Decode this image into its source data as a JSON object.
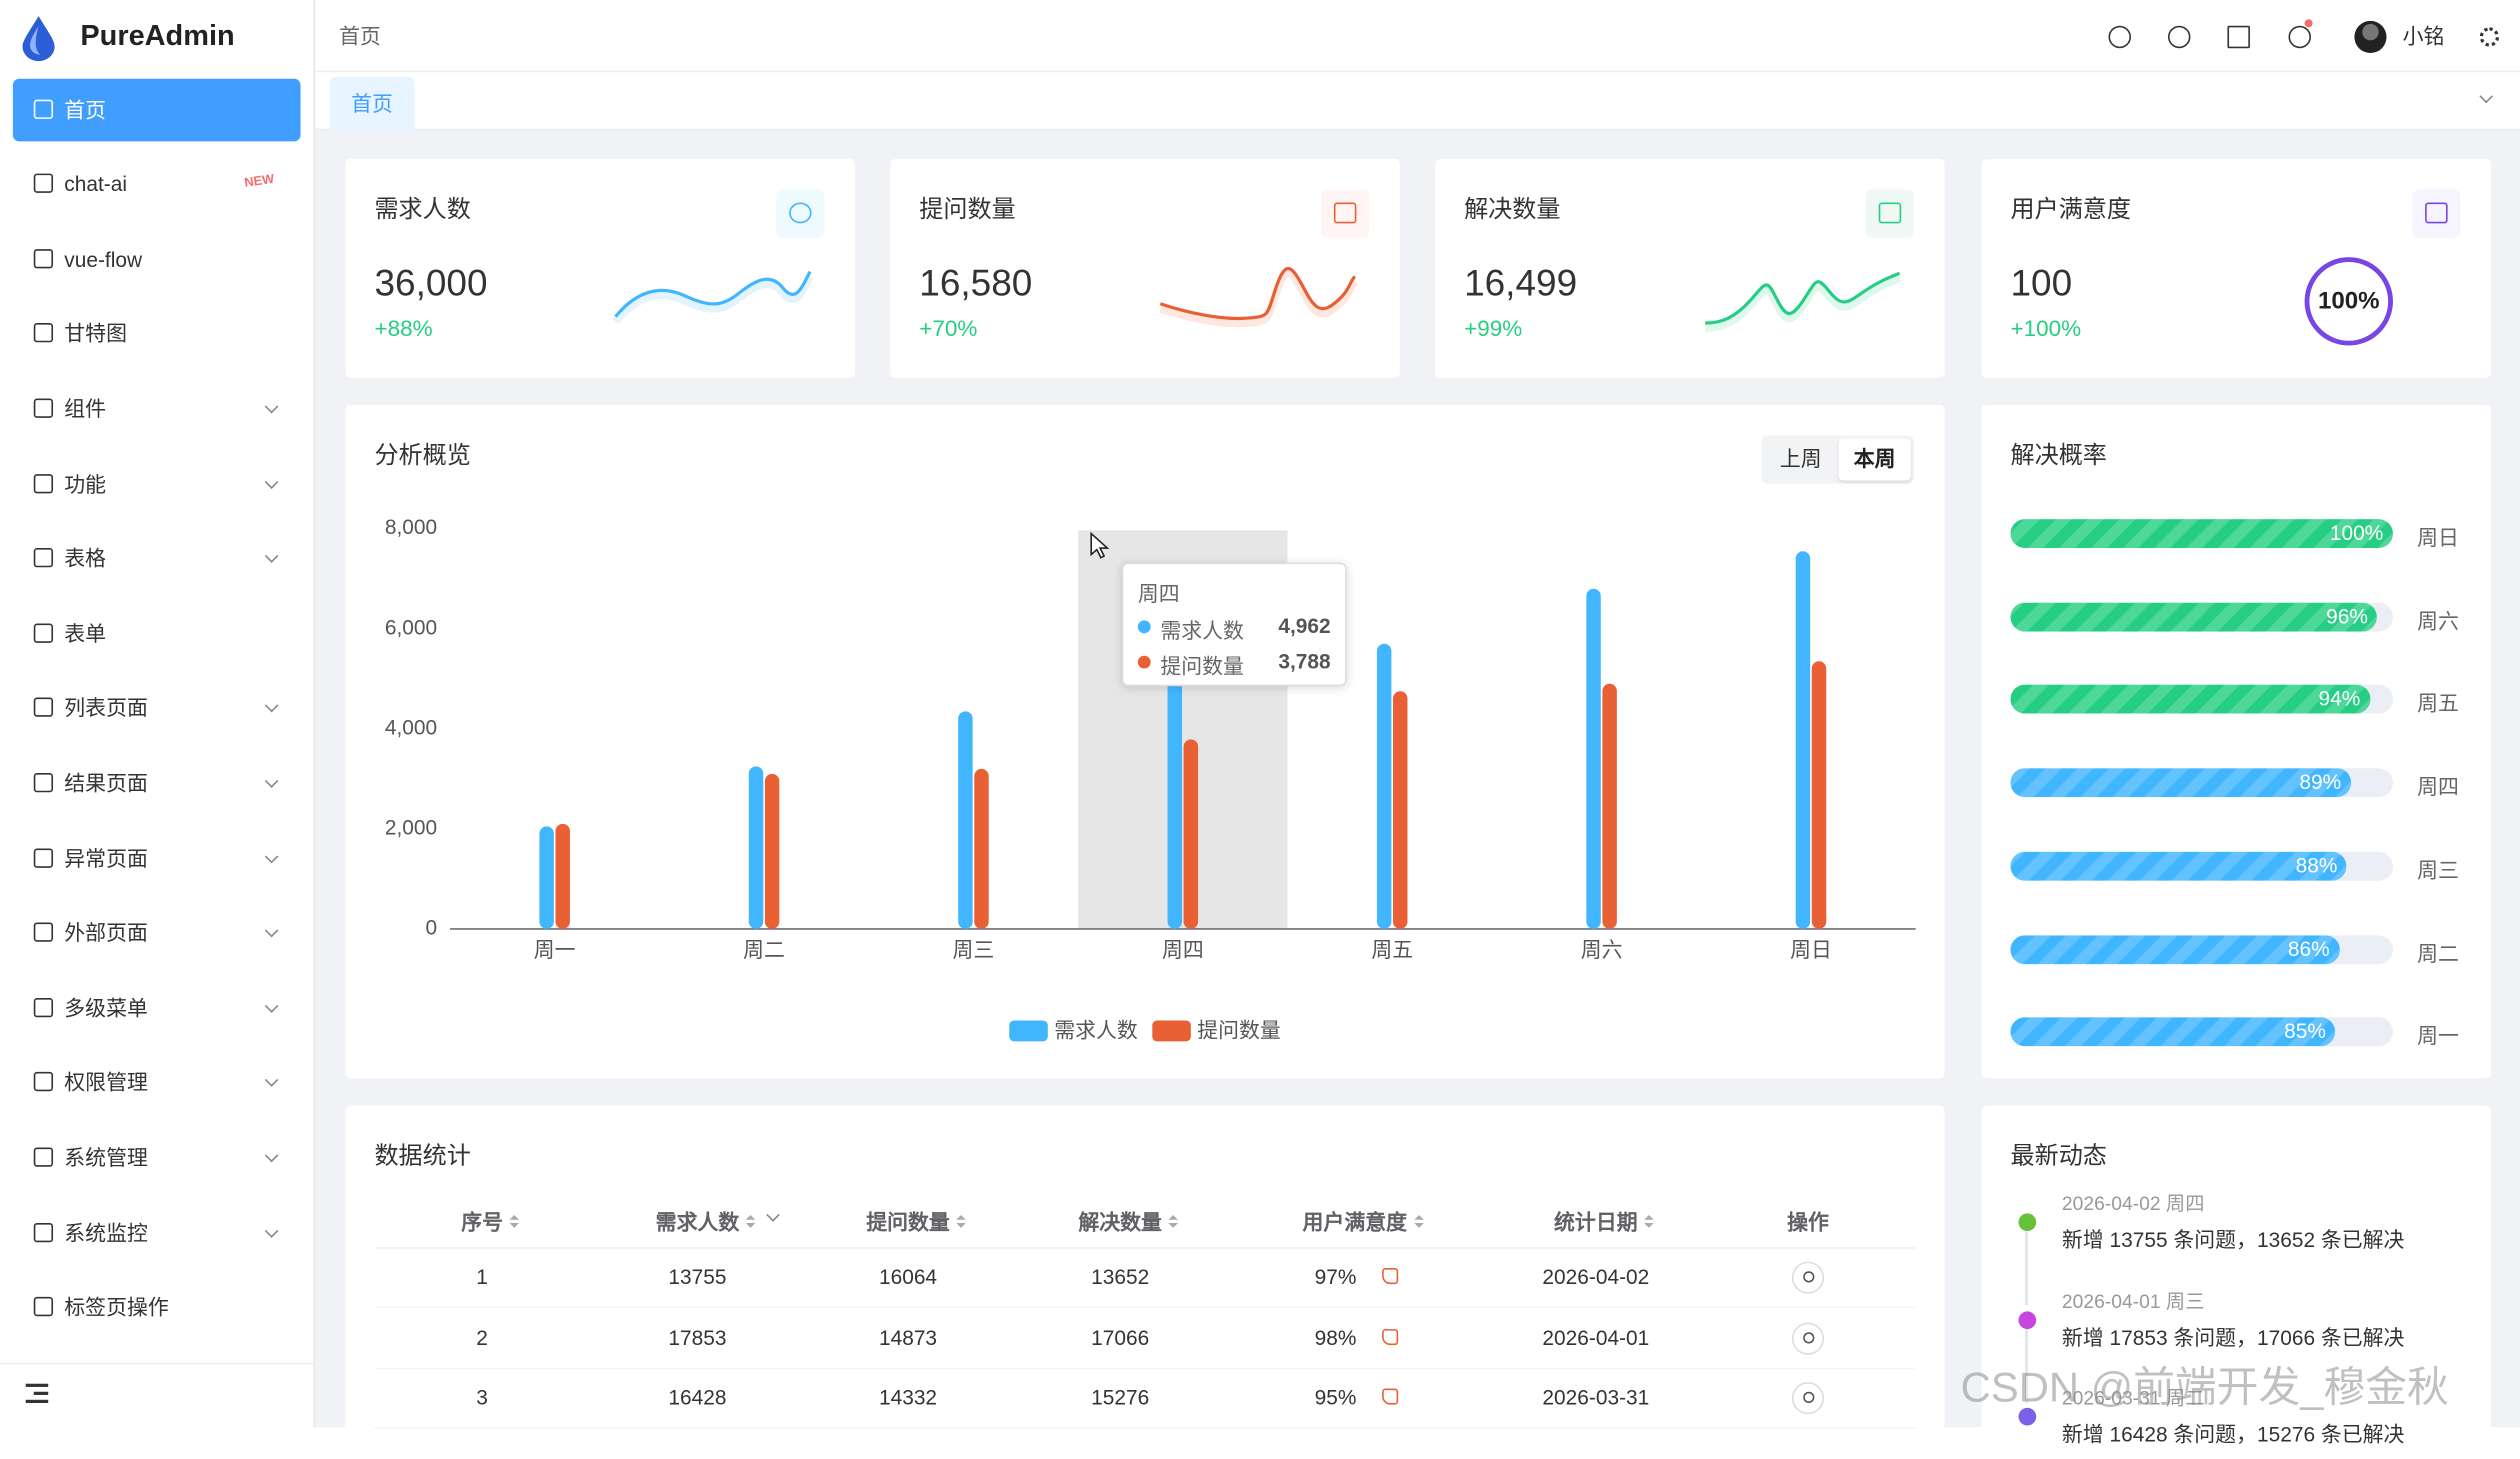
{
  "sidebar": {
    "brand": "PureAdmin",
    "menu": [
      {
        "label": "首页",
        "active": true
      },
      {
        "label": "chat-ai",
        "badge": "NEW"
      },
      {
        "label": "vue-flow"
      },
      {
        "label": "甘特图"
      },
      {
        "label": "组件",
        "expandable": true
      },
      {
        "label": "功能",
        "expandable": true
      },
      {
        "label": "表格",
        "expandable": true
      },
      {
        "label": "表单"
      },
      {
        "label": "列表页面",
        "expandable": true
      },
      {
        "label": "结果页面",
        "expandable": true
      },
      {
        "label": "异常页面",
        "expandable": true
      },
      {
        "label": "外部页面",
        "expandable": true
      },
      {
        "label": "多级菜单",
        "expandable": true
      },
      {
        "label": "权限管理",
        "expandable": true
      },
      {
        "label": "系统管理",
        "expandable": true
      },
      {
        "label": "系统监控",
        "expandable": true
      },
      {
        "label": "标签页操作"
      }
    ]
  },
  "header": {
    "breadcrumb": "首页",
    "user": "小铭"
  },
  "tabs": [
    "首页"
  ],
  "cards": [
    {
      "title": "需求人数",
      "value": "36,000",
      "change": "+88%",
      "color": "#41b6ff",
      "bg": "#effaff"
    },
    {
      "title": "提问数量",
      "value": "16,580",
      "change": "+70%",
      "color": "#e85f33",
      "bg": "#fff5f4"
    },
    {
      "title": "解决数量",
      "value": "16,499",
      "change": "+99%",
      "color": "#26ce83",
      "bg": "#eff8f4"
    },
    {
      "title": "用户满意度",
      "value": "100",
      "change": "+100%",
      "ring": "100%",
      "color": "#7846e5",
      "bg": "#f6f4fe"
    }
  ],
  "chart_panel": {
    "buttons": [
      "上周",
      "本周"
    ],
    "active_button": 1
  },
  "chart_data": {
    "type": "bar",
    "title": "分析概览",
    "categories": [
      "周一",
      "周二",
      "周三",
      "周四",
      "周五",
      "周六",
      "周日"
    ],
    "series": [
      {
        "name": "需求人数",
        "color": "#41b6ff",
        "values": [
          2050,
          3250,
          4350,
          4962,
          5700,
          6800,
          7550
        ]
      },
      {
        "name": "提问数量",
        "color": "#e86033",
        "values": [
          2100,
          3100,
          3200,
          3788,
          4750,
          4900,
          5350
        ]
      }
    ],
    "ylim": [
      0,
      8000
    ],
    "yticks": [
      0,
      {
        "value": 2000,
        "label": "2,000"
      },
      {
        "value": 4000,
        "label": "4,000"
      },
      {
        "value": 6000,
        "label": "6,000"
      },
      {
        "value": 8000,
        "label": "8,000"
      }
    ],
    "grid": false,
    "tooltip": {
      "category": "周四",
      "rows": [
        {
          "name": "需求人数",
          "value": "4,962"
        },
        {
          "name": "提问数量",
          "value": "3,788"
        }
      ]
    }
  },
  "progress": {
    "title": "解决概率",
    "items": [
      {
        "label": "周日",
        "value": 100,
        "value_label": "100%",
        "color": "#26ce83"
      },
      {
        "label": "周六",
        "value": 96,
        "value_label": "96%",
        "color": "#26ce83"
      },
      {
        "label": "周五",
        "value": 94,
        "value_label": "94%",
        "color": "#26ce83"
      },
      {
        "label": "周四",
        "value": 89,
        "value_label": "89%",
        "color": "#41b6ff"
      },
      {
        "label": "周三",
        "value": 88,
        "value_label": "88%",
        "color": "#41b6ff"
      },
      {
        "label": "周二",
        "value": 86,
        "value_label": "86%",
        "color": "#41b6ff"
      },
      {
        "label": "周一",
        "value": 85,
        "value_label": "85%",
        "color": "#41b6ff"
      }
    ]
  },
  "table": {
    "title": "数据统计",
    "columns": [
      "序号",
      "需求人数",
      "提问数量",
      "解决数量",
      "用户满意度",
      "统计日期",
      "操作"
    ],
    "rows": [
      [
        "1",
        "13755",
        "16064",
        "13652",
        "97%",
        "2026-04-02"
      ],
      [
        "2",
        "17853",
        "14873",
        "17066",
        "98%",
        "2026-04-01"
      ],
      [
        "3",
        "16428",
        "14332",
        "15276",
        "95%",
        "2026-03-31"
      ]
    ]
  },
  "timeline": {
    "title": "最新动态",
    "items": [
      {
        "time": "2026-04-02 周四",
        "text": "新增 13755 条问题，13652 条已解决",
        "color": "#67c23a"
      },
      {
        "time": "2026-04-01 周三",
        "text": "新增 17853 条问题，17066 条已解决",
        "color": "#c846e0"
      },
      {
        "time": "2026-03-31 周二",
        "text": "新增 16428 条问题，15276 条已解决",
        "color": "#7b61e8"
      }
    ]
  },
  "watermark": "CSDN @前端开发_穆金秋"
}
